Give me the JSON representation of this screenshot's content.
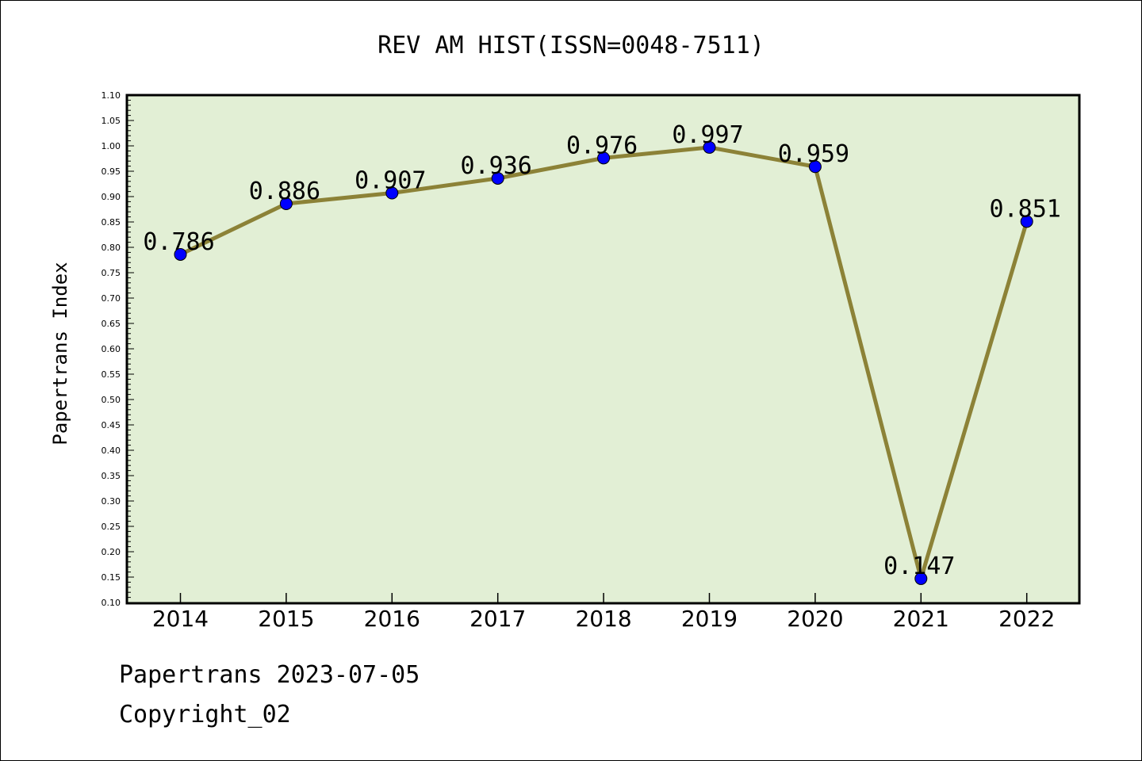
{
  "chart_data": {
    "type": "line",
    "title": "REV AM HIST(ISSN=0048-7511)",
    "ylabel": "Papertrans Index",
    "xlabel": "",
    "categories": [
      "2014",
      "2015",
      "2016",
      "2017",
      "2018",
      "2019",
      "2020",
      "2021",
      "2022"
    ],
    "values": [
      0.786,
      0.886,
      0.907,
      0.936,
      0.976,
      0.997,
      0.959,
      0.147,
      0.851
    ],
    "data_labels": [
      "0.786",
      "0.886",
      "0.907",
      "0.936",
      "0.976",
      "0.997",
      "0.959",
      "0.147",
      "0.851"
    ],
    "ylim": [
      0.1,
      1.1
    ],
    "yticks": [
      "0.10",
      "0.15",
      "0.20",
      "0.25",
      "0.30",
      "0.35",
      "0.40",
      "0.45",
      "0.50",
      "0.55",
      "0.60",
      "0.65",
      "0.70",
      "0.75",
      "0.80",
      "0.85",
      "0.90",
      "0.95",
      "1.00",
      "1.05",
      "1.10"
    ],
    "grid": false,
    "colors": {
      "plot_background": "#e2efd5",
      "line": "#8c8237",
      "marker": "#0000ff"
    }
  },
  "footer": {
    "line1": "Papertrans 2023-07-05",
    "line2": "Copyright_02"
  }
}
